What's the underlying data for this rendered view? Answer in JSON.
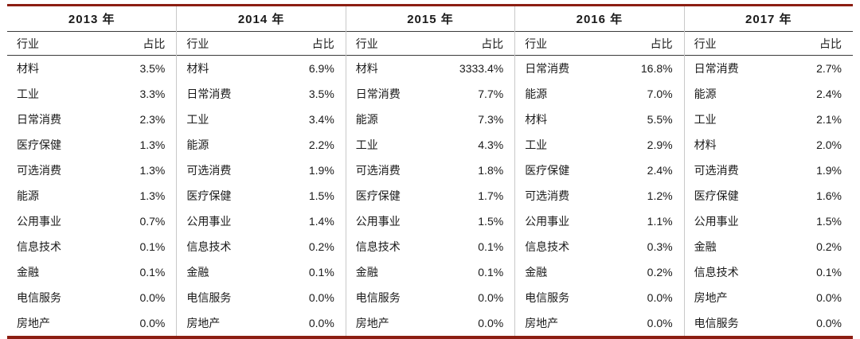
{
  "colors": {
    "accent": "#8C1E12",
    "column_separator": "#c9c9c9",
    "header_rule": "#3a3a3a"
  },
  "chart_data": {
    "type": "table",
    "col_headers": {
      "industry": "行业",
      "share": "占比"
    },
    "years": [
      {
        "label": "2013 年",
        "rows": [
          [
            "材料",
            "3.5%"
          ],
          [
            "工业",
            "3.3%"
          ],
          [
            "日常消费",
            "2.3%"
          ],
          [
            "医疗保健",
            "1.3%"
          ],
          [
            "可选消费",
            "1.3%"
          ],
          [
            "能源",
            "1.3%"
          ],
          [
            "公用事业",
            "0.7%"
          ],
          [
            "信息技术",
            "0.1%"
          ],
          [
            "金融",
            "0.1%"
          ],
          [
            "电信服务",
            "0.0%"
          ],
          [
            "房地产",
            "0.0%"
          ]
        ]
      },
      {
        "label": "2014 年",
        "rows": [
          [
            "材料",
            "6.9%"
          ],
          [
            "日常消费",
            "3.5%"
          ],
          [
            "工业",
            "3.4%"
          ],
          [
            "能源",
            "2.2%"
          ],
          [
            "可选消费",
            "1.9%"
          ],
          [
            "医疗保健",
            "1.5%"
          ],
          [
            "公用事业",
            "1.4%"
          ],
          [
            "信息技术",
            "0.2%"
          ],
          [
            "金融",
            "0.1%"
          ],
          [
            "电信服务",
            "0.0%"
          ],
          [
            "房地产",
            "0.0%"
          ]
        ]
      },
      {
        "label": "2015 年",
        "rows": [
          [
            "材料",
            "3333.4%"
          ],
          [
            "日常消费",
            "7.7%"
          ],
          [
            "能源",
            "7.3%"
          ],
          [
            "工业",
            "4.3%"
          ],
          [
            "可选消费",
            "1.8%"
          ],
          [
            "医疗保健",
            "1.7%"
          ],
          [
            "公用事业",
            "1.5%"
          ],
          [
            "信息技术",
            "0.1%"
          ],
          [
            "金融",
            "0.1%"
          ],
          [
            "电信服务",
            "0.0%"
          ],
          [
            "房地产",
            "0.0%"
          ]
        ]
      },
      {
        "label": "2016 年",
        "rows": [
          [
            "日常消费",
            "16.8%"
          ],
          [
            "能源",
            "7.0%"
          ],
          [
            "材料",
            "5.5%"
          ],
          [
            "工业",
            "2.9%"
          ],
          [
            "医疗保健",
            "2.4%"
          ],
          [
            "可选消费",
            "1.2%"
          ],
          [
            "公用事业",
            "1.1%"
          ],
          [
            "信息技术",
            "0.3%"
          ],
          [
            "金融",
            "0.2%"
          ],
          [
            "电信服务",
            "0.0%"
          ],
          [
            "房地产",
            "0.0%"
          ]
        ]
      },
      {
        "label": "2017 年",
        "rows": [
          [
            "日常消费",
            "2.7%"
          ],
          [
            "能源",
            "2.4%"
          ],
          [
            "工业",
            "2.1%"
          ],
          [
            "材料",
            "2.0%"
          ],
          [
            "可选消费",
            "1.9%"
          ],
          [
            "医疗保健",
            "1.6%"
          ],
          [
            "公用事业",
            "1.5%"
          ],
          [
            "金融",
            "0.2%"
          ],
          [
            "信息技术",
            "0.1%"
          ],
          [
            "房地产",
            "0.0%"
          ],
          [
            "电信服务",
            "0.0%"
          ]
        ]
      }
    ]
  }
}
